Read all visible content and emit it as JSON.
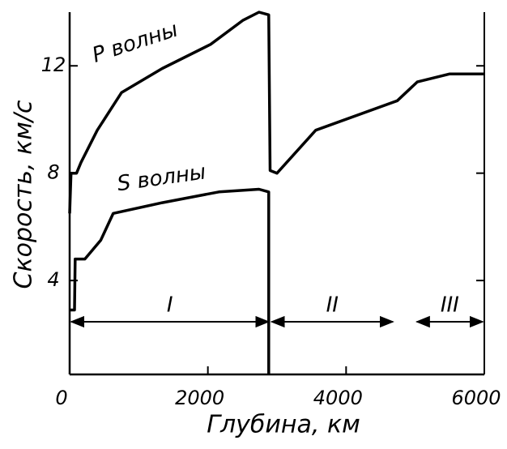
{
  "chart_data": {
    "type": "line",
    "xlabel": "Глубина, км",
    "ylabel": "Скорость, км/с",
    "xlim": [
      0,
      6000
    ],
    "ylim": [
      0.5,
      14
    ],
    "xticks": [
      0,
      2000,
      4000,
      6000
    ],
    "yticks": [
      4,
      8,
      12
    ],
    "series": [
      {
        "name": "P волны",
        "color": "#000000",
        "x": [
          0,
          20,
          100,
          164,
          400,
          750,
          1340,
          2040,
          2510,
          2740,
          2880,
          2900,
          3000,
          3560,
          4740,
          5030,
          5500,
          6000
        ],
        "values": [
          6.5,
          8.0,
          8.0,
          8.4,
          9.6,
          11.0,
          11.9,
          12.8,
          13.7,
          14.0,
          13.9,
          8.1,
          8.0,
          9.6,
          10.7,
          11.4,
          11.7,
          11.7
        ]
      },
      {
        "name": "S волны",
        "color": "#000000",
        "x": [
          0,
          70,
          80,
          220,
          450,
          630,
          1340,
          2160,
          2740,
          2880,
          2880
        ],
        "values": [
          2.9,
          2.9,
          4.8,
          4.8,
          5.5,
          6.5,
          6.9,
          7.3,
          7.4,
          7.3,
          0.5
        ]
      }
    ],
    "regions": [
      {
        "label": "I",
        "start": 0,
        "end": 2900
      },
      {
        "label": "II",
        "start": 2900,
        "end": 4700
      },
      {
        "label": "III",
        "start": 5000,
        "end": 6000
      }
    ]
  }
}
